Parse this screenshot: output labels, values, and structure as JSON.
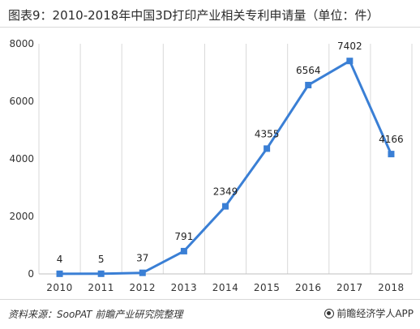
{
  "chart_data": {
    "type": "line",
    "title": "图表9：2010-2018年中国3D打印产业相关专利申请量（单位：件）",
    "categories": [
      "2010",
      "2011",
      "2012",
      "2013",
      "2014",
      "2015",
      "2016",
      "2017",
      "2018"
    ],
    "series": [
      {
        "values": [
          4,
          5,
          37,
          791,
          2349,
          4355,
          6564,
          7402,
          4166
        ]
      }
    ],
    "data_labels": [
      "4",
      "5",
      "37",
      "791",
      "2349",
      "4355",
      "6564",
      "7402",
      "4166"
    ],
    "y_ticks": [
      "0",
      "2000",
      "4000",
      "6000",
      "8000"
    ],
    "ylim": [
      0,
      8000
    ],
    "grid": "vertical",
    "line_color": "#3a7fd5",
    "marker": "square"
  },
  "footer": {
    "source": "资料来源：SooPAT 前瞻产业研究院整理",
    "brand": "前瞻经济学人APP"
  }
}
